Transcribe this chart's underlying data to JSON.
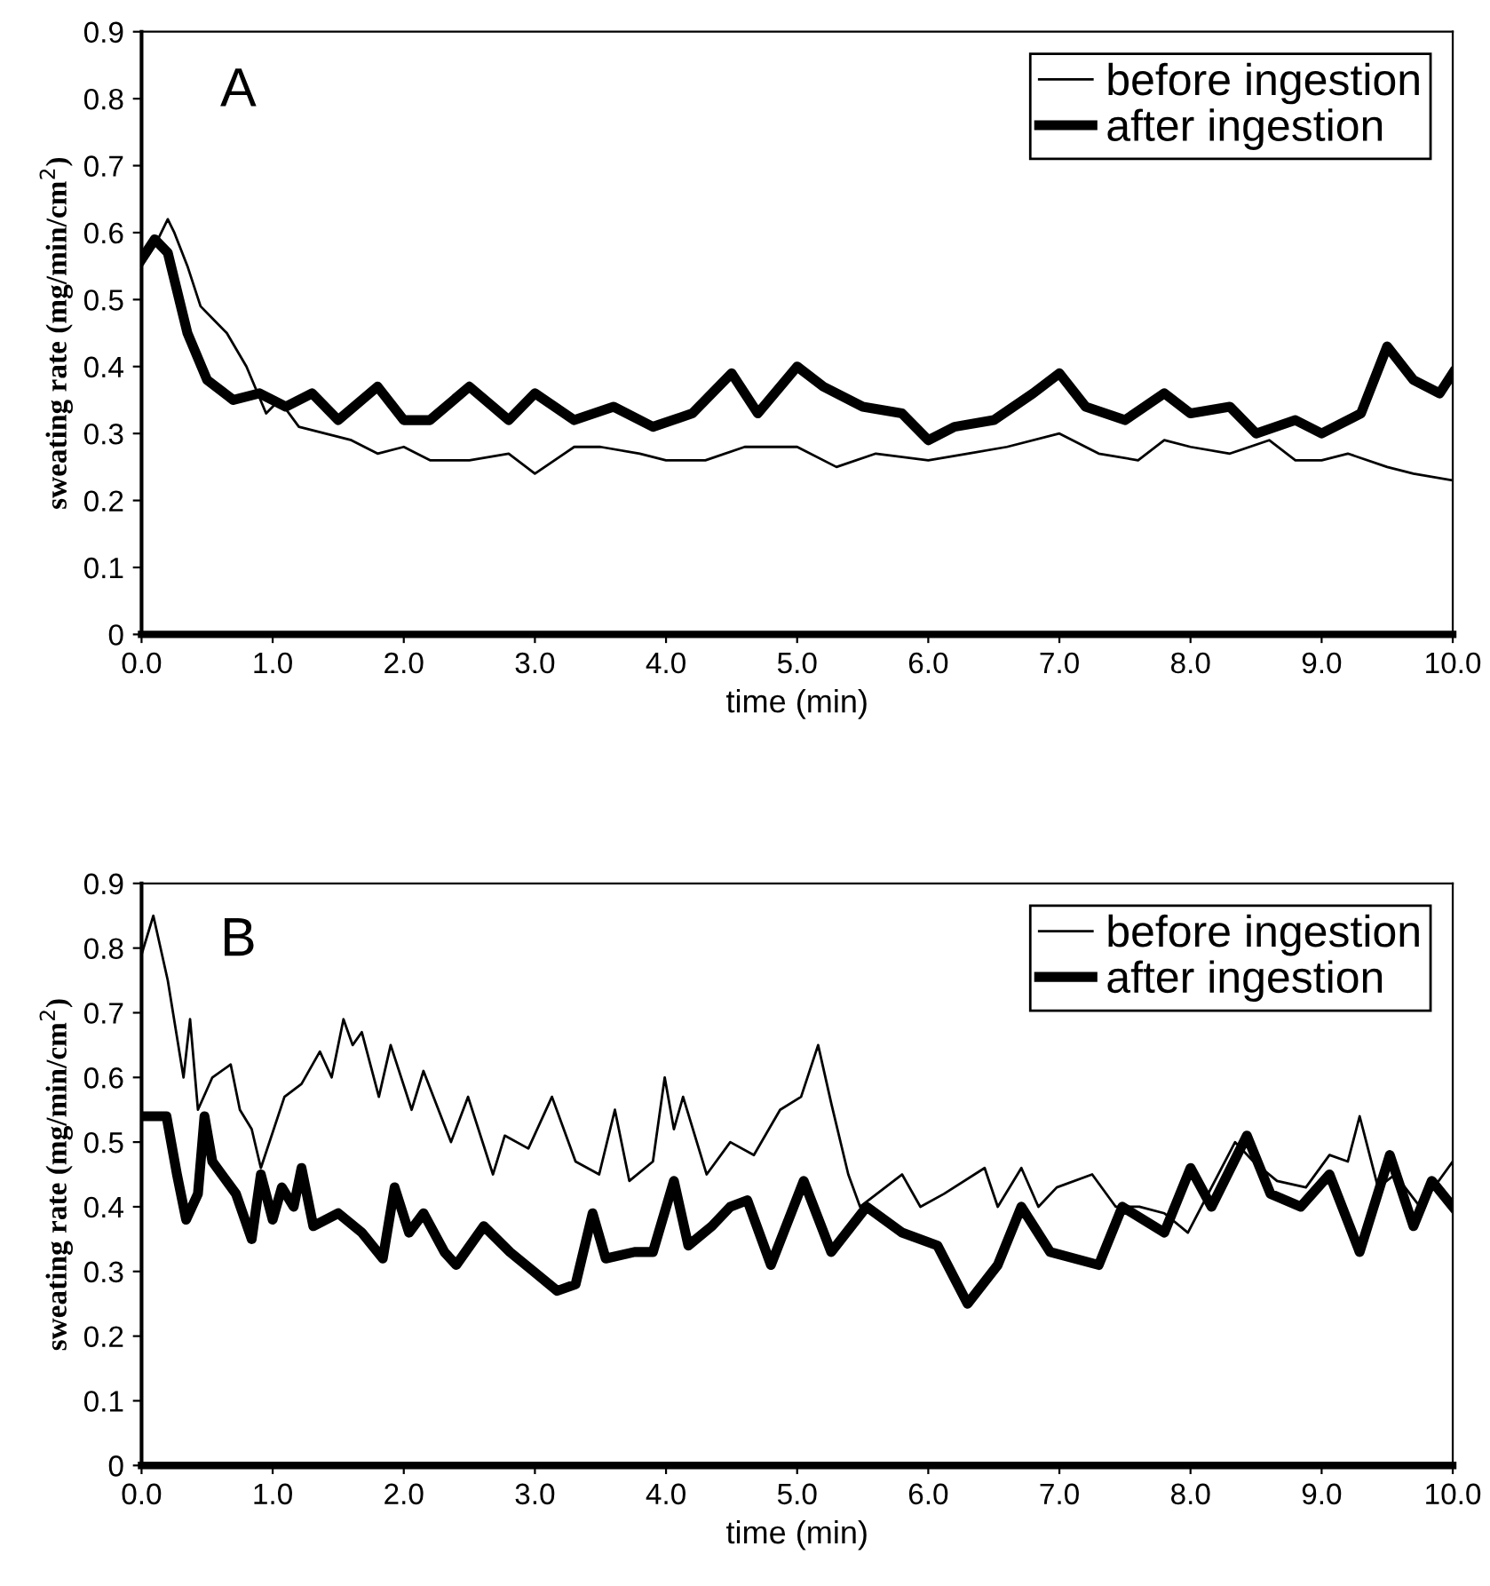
{
  "chart_data": [
    {
      "type": "line",
      "annotations": [
        "A"
      ],
      "xlabel": "time (min)",
      "ylabel": "sweating rate (mg/min/cm$^{2}$)",
      "xlim": [
        0,
        10
      ],
      "ylim": [
        0,
        0.9
      ],
      "xticks": [
        {
          "value": 0,
          "label": "0.0"
        },
        {
          "value": 1,
          "label": "1.0"
        },
        {
          "value": 2,
          "label": "2.0"
        },
        {
          "value": 3,
          "label": "3.0"
        },
        {
          "value": 4,
          "label": "4.0"
        },
        {
          "value": 5,
          "label": "5.0"
        },
        {
          "value": 6,
          "label": "6.0"
        },
        {
          "value": 7,
          "label": "7.0"
        },
        {
          "value": 8,
          "label": "8.0"
        },
        {
          "value": 9,
          "label": "9.0"
        },
        {
          "value": 10,
          "label": "10.0"
        }
      ],
      "yticks": [
        0,
        0.1,
        0.2,
        0.3,
        0.4,
        0.5,
        0.6,
        0.7,
        0.8,
        0.9
      ],
      "grid": false,
      "legend": "top right",
      "marker": "none",
      "line_style": "solid",
      "series": [
        {
          "name": "before ingestion",
          "color": "#000000",
          "x": [
            0,
            0.1,
            0.2,
            0.25,
            0.35,
            0.45,
            0.55,
            0.65,
            0.8,
            0.95,
            1.05,
            1.2,
            1.4,
            1.6,
            1.8,
            2.0,
            2.2,
            2.5,
            2.8,
            3.0,
            3.3,
            3.5,
            3.8,
            4.0,
            4.3,
            4.6,
            5.0,
            5.3,
            5.6,
            6.0,
            6.3,
            6.6,
            7.0,
            7.3,
            7.6,
            7.8,
            8.0,
            8.3,
            8.6,
            8.8,
            9.0,
            9.2,
            9.5,
            9.7,
            10.0
          ],
          "values": [
            0.55,
            0.58,
            0.62,
            0.6,
            0.55,
            0.49,
            0.47,
            0.45,
            0.4,
            0.33,
            0.35,
            0.31,
            0.3,
            0.29,
            0.27,
            0.28,
            0.26,
            0.26,
            0.27,
            0.24,
            0.28,
            0.28,
            0.27,
            0.26,
            0.26,
            0.28,
            0.28,
            0.25,
            0.27,
            0.26,
            0.27,
            0.28,
            0.3,
            0.27,
            0.26,
            0.29,
            0.28,
            0.27,
            0.29,
            0.26,
            0.26,
            0.27,
            0.25,
            0.24,
            0.23
          ]
        },
        {
          "name": "after ingestion",
          "color": "#000000",
          "x": [
            0,
            0.1,
            0.2,
            0.35,
            0.5,
            0.7,
            0.9,
            1.1,
            1.3,
            1.5,
            1.8,
            2.0,
            2.2,
            2.5,
            2.8,
            3.0,
            3.3,
            3.6,
            3.9,
            4.2,
            4.5,
            4.7,
            5.0,
            5.2,
            5.5,
            5.8,
            6.0,
            6.2,
            6.5,
            6.8,
            7.0,
            7.2,
            7.5,
            7.8,
            8.0,
            8.3,
            8.5,
            8.8,
            9.0,
            9.3,
            9.5,
            9.7,
            9.9,
            10.0
          ],
          "values": [
            0.56,
            0.59,
            0.57,
            0.45,
            0.38,
            0.35,
            0.36,
            0.34,
            0.36,
            0.32,
            0.37,
            0.32,
            0.32,
            0.37,
            0.32,
            0.36,
            0.32,
            0.34,
            0.31,
            0.33,
            0.39,
            0.33,
            0.4,
            0.37,
            0.34,
            0.33,
            0.29,
            0.31,
            0.32,
            0.36,
            0.39,
            0.34,
            0.32,
            0.36,
            0.33,
            0.34,
            0.3,
            0.32,
            0.3,
            0.33,
            0.43,
            0.38,
            0.36,
            0.39
          ]
        }
      ]
    },
    {
      "type": "line",
      "annotations": [
        "B"
      ],
      "xlabel": "time (min)",
      "ylabel": "sweating rate (mg/min/cm$^{2}$)",
      "xlim": [
        0,
        10
      ],
      "ylim": [
        0,
        0.9
      ],
      "xticks": [
        {
          "value": 0,
          "label": "0.0"
        },
        {
          "value": 1,
          "label": "1.0"
        },
        {
          "value": 2,
          "label": "2.0"
        },
        {
          "value": 3,
          "label": "3.0"
        },
        {
          "value": 4,
          "label": "4.0"
        },
        {
          "value": 5,
          "label": "5.0"
        },
        {
          "value": 6,
          "label": "6.0"
        },
        {
          "value": 7,
          "label": "7.0"
        },
        {
          "value": 8,
          "label": "8.0"
        },
        {
          "value": 9,
          "label": "9.0"
        },
        {
          "value": 10,
          "label": "10.0"
        }
      ],
      "yticks": [
        0,
        0.1,
        0.2,
        0.3,
        0.4,
        0.5,
        0.6,
        0.7,
        0.8,
        0.9
      ],
      "grid": false,
      "legend": "top right",
      "marker": "none",
      "line_style": "solid",
      "series": [
        {
          "name": "before ingestion",
          "color": "#000000",
          "x": [
            0,
            0.09,
            0.2,
            0.32,
            0.37,
            0.43,
            0.54,
            0.68,
            0.75,
            0.84,
            0.91,
            1.09,
            1.22,
            1.36,
            1.45,
            1.54,
            1.61,
            1.68,
            1.81,
            1.9,
            2.06,
            2.15,
            2.36,
            2.49,
            2.68,
            2.77,
            2.95,
            3.13,
            3.31,
            3.49,
            3.61,
            3.72,
            3.9,
            3.99,
            4.06,
            4.13,
            4.31,
            4.49,
            4.67,
            4.87,
            5.03,
            5.16,
            5.26,
            5.39,
            5.48,
            5.8,
            5.94,
            6.12,
            6.43,
            6.53,
            6.71,
            6.84,
            6.98,
            7.25,
            7.43,
            7.61,
            7.8,
            7.98,
            8.16,
            8.34,
            8.48,
            8.66,
            8.88,
            9.06,
            9.2,
            9.29,
            9.43,
            9.56,
            9.75,
            10.0
          ],
          "values": [
            0.79,
            0.85,
            0.75,
            0.6,
            0.69,
            0.55,
            0.6,
            0.62,
            0.55,
            0.52,
            0.46,
            0.57,
            0.59,
            0.64,
            0.6,
            0.69,
            0.65,
            0.67,
            0.57,
            0.65,
            0.55,
            0.61,
            0.5,
            0.57,
            0.45,
            0.51,
            0.49,
            0.57,
            0.47,
            0.45,
            0.55,
            0.44,
            0.47,
            0.6,
            0.52,
            0.57,
            0.45,
            0.5,
            0.48,
            0.55,
            0.57,
            0.65,
            0.56,
            0.45,
            0.4,
            0.45,
            0.4,
            0.42,
            0.46,
            0.4,
            0.46,
            0.4,
            0.43,
            0.45,
            0.4,
            0.4,
            0.39,
            0.36,
            0.43,
            0.5,
            0.47,
            0.44,
            0.43,
            0.48,
            0.47,
            0.54,
            0.43,
            0.45,
            0.4,
            0.47
          ]
        },
        {
          "name": "after ingestion",
          "color": "#000000",
          "x": [
            0,
            0.19,
            0.27,
            0.34,
            0.43,
            0.48,
            0.54,
            0.72,
            0.84,
            0.91,
            1.0,
            1.07,
            1.16,
            1.22,
            1.31,
            1.5,
            1.68,
            1.84,
            1.93,
            2.04,
            2.15,
            2.31,
            2.4,
            2.61,
            2.81,
            2.99,
            3.17,
            3.31,
            3.44,
            3.54,
            3.76,
            3.9,
            4.06,
            4.17,
            4.35,
            4.49,
            4.62,
            4.8,
            5.05,
            5.26,
            5.53,
            5.8,
            6.07,
            6.3,
            6.53,
            6.71,
            6.93,
            7.3,
            7.48,
            7.8,
            8.0,
            8.16,
            8.43,
            8.61,
            8.84,
            9.06,
            9.29,
            9.52,
            9.7,
            9.84,
            10.0
          ],
          "values": [
            0.54,
            0.54,
            0.45,
            0.38,
            0.42,
            0.54,
            0.47,
            0.42,
            0.35,
            0.45,
            0.38,
            0.43,
            0.4,
            0.46,
            0.37,
            0.39,
            0.36,
            0.32,
            0.43,
            0.36,
            0.39,
            0.33,
            0.31,
            0.37,
            0.33,
            0.3,
            0.27,
            0.28,
            0.39,
            0.32,
            0.33,
            0.33,
            0.44,
            0.34,
            0.37,
            0.4,
            0.41,
            0.31,
            0.44,
            0.33,
            0.4,
            0.36,
            0.34,
            0.25,
            0.31,
            0.4,
            0.33,
            0.31,
            0.4,
            0.36,
            0.46,
            0.4,
            0.51,
            0.42,
            0.4,
            0.45,
            0.33,
            0.48,
            0.37,
            0.44,
            0.4
          ]
        }
      ]
    }
  ]
}
